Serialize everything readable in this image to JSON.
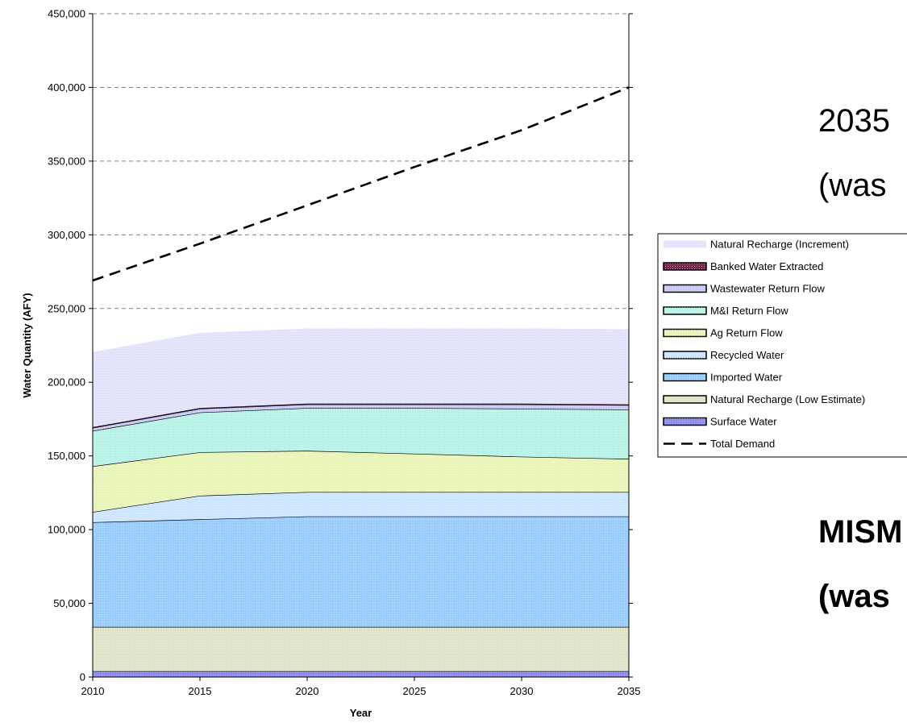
{
  "side_text": [
    {
      "text": "2035",
      "bold": false
    },
    {
      "text": "(was",
      "bold": false
    },
    {
      "text": "MISM",
      "bold": true
    },
    {
      "text": "(was",
      "bold": true
    }
  ],
  "chart_data": {
    "type": "area",
    "title": "",
    "xlabel": "Year",
    "ylabel": "Water Quantity (AFY)",
    "x": [
      2010,
      2015,
      2020,
      2025,
      2030,
      2035
    ],
    "xlim": [
      2010,
      2035
    ],
    "ylim": [
      0,
      450000
    ],
    "x_ticks": [
      "2010",
      "2015",
      "2020",
      "2025",
      "2030",
      "2035"
    ],
    "y_ticks": [
      "0",
      "50,000",
      "100,000",
      "150,000",
      "200,000",
      "250,000",
      "300,000",
      "350,000",
      "400,000",
      "450,000"
    ],
    "grid": "horizontal dashed",
    "legend": "right",
    "stacked_series": [
      {
        "name": "Surface Water",
        "color": "#8c8cf0",
        "values": [
          4000,
          4000,
          4000,
          4000,
          4000,
          4000
        ]
      },
      {
        "name": "Natural Recharge (Low Estimate)",
        "color": "#dfe3c9",
        "values": [
          30000,
          30000,
          30000,
          30000,
          30000,
          30000
        ]
      },
      {
        "name": "Imported Water",
        "color": "#99ccff",
        "values": [
          71000,
          73000,
          75000,
          75000,
          75000,
          75000
        ]
      },
      {
        "name": "Recycled Water",
        "color": "#cce6ff",
        "values": [
          7000,
          16000,
          16500,
          16500,
          16500,
          16500
        ]
      },
      {
        "name": "Ag Return Flow",
        "color": "#e9f5b8",
        "values": [
          31000,
          29500,
          28000,
          26000,
          24000,
          22500
        ]
      },
      {
        "name": "M&I Return Flow",
        "color": "#b8f2e6",
        "values": [
          24000,
          27000,
          29000,
          31000,
          32500,
          33500
        ]
      },
      {
        "name": "Wastewater Return Flow",
        "color": "#c9c9f5",
        "values": [
          2000,
          2500,
          2500,
          2500,
          3000,
          3000
        ]
      },
      {
        "name": "Banked Water Extracted",
        "color": "#7b2450",
        "values": [
          500,
          500,
          500,
          500,
          500,
          500
        ]
      },
      {
        "name": "Natural Recharge (Increment)",
        "color": "#e2e2fb",
        "values": [
          51000,
          51000,
          51000,
          51000,
          51000,
          51000
        ]
      }
    ],
    "lines": [
      {
        "name": "Total Demand",
        "style": "dashed",
        "color": "#000000",
        "values": [
          269000,
          294000,
          320000,
          346000,
          371000,
          400000
        ]
      }
    ],
    "legend_order": [
      "Natural Recharge (Increment)",
      "Banked Water Extracted",
      "Wastewater Return Flow",
      "M&I Return Flow",
      "Ag Return Flow",
      "Recycled Water",
      "Imported Water",
      "Natural Recharge (Low Estimate)",
      "Surface Water",
      "Total Demand"
    ]
  }
}
